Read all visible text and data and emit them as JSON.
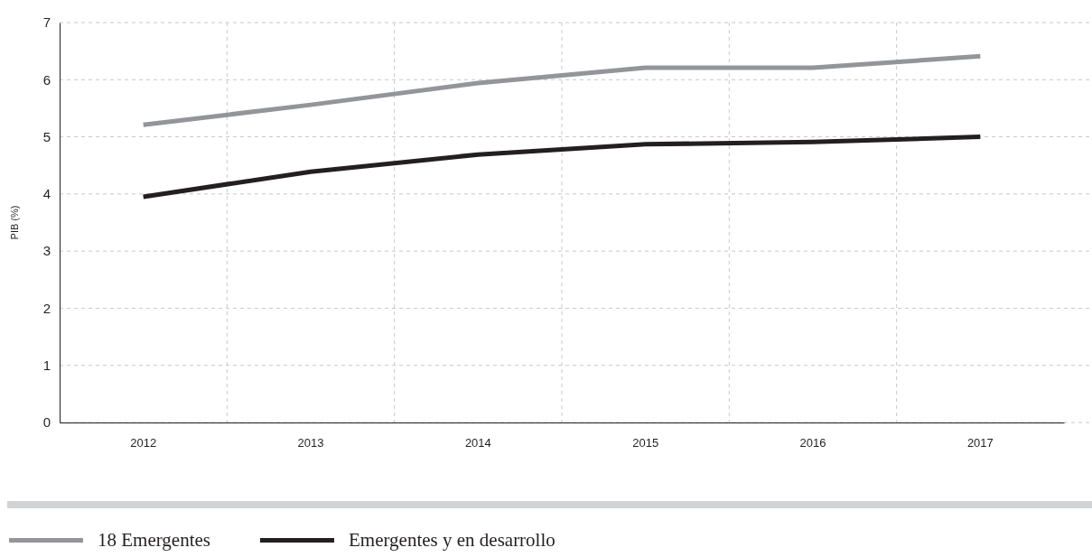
{
  "chart_data": {
    "type": "line",
    "ylabel": "PIB (%)",
    "categories": [
      "2012",
      "2013",
      "2014",
      "2015",
      "2016",
      "2017"
    ],
    "series": [
      {
        "name": "18 Emergentes",
        "color": "#939598",
        "values": [
          5.21,
          5.56,
          5.94,
          6.21,
          6.21,
          6.41
        ]
      },
      {
        "name": "Emergentes y en desarrollo",
        "color": "#231f20",
        "values": [
          3.95,
          4.39,
          4.69,
          4.87,
          4.91,
          5.0
        ]
      }
    ],
    "ylim": [
      0,
      7
    ],
    "yticks": [
      0,
      1,
      2,
      3,
      4,
      5,
      6,
      7
    ],
    "grid": true,
    "legend": "bottom"
  }
}
